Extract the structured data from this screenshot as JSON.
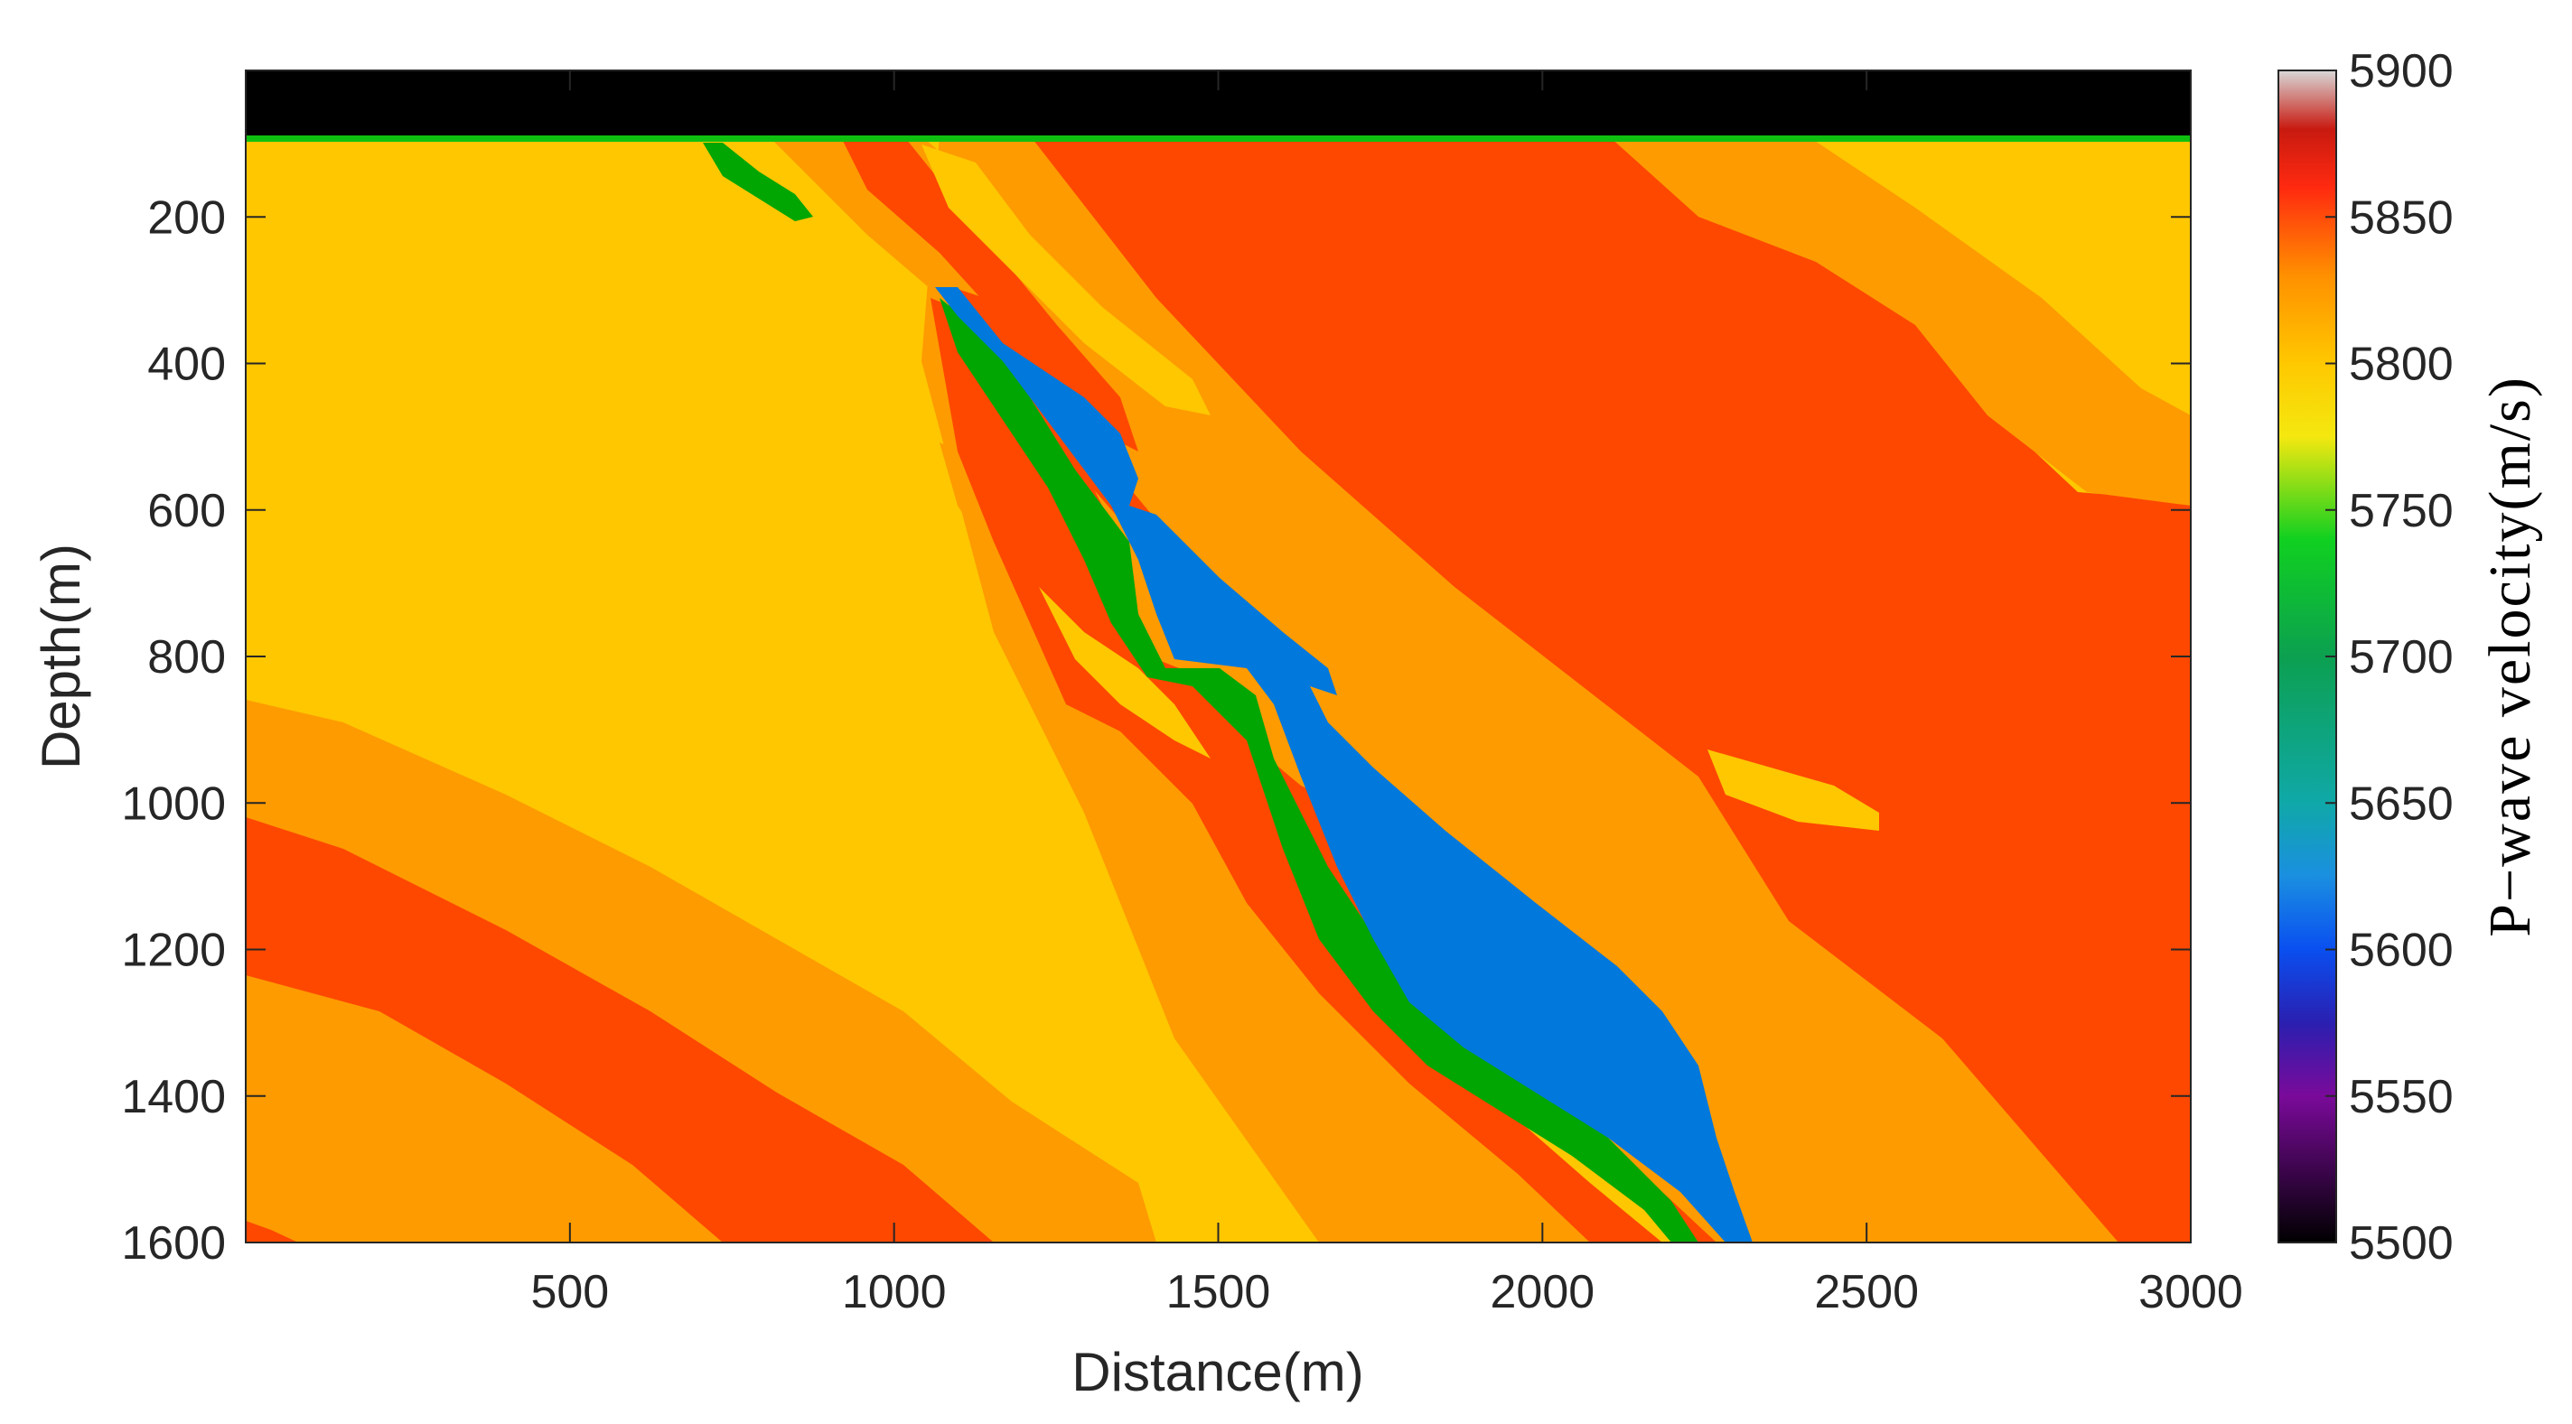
{
  "chart_data": {
    "type": "heatmap",
    "title": "",
    "xlabel": "Distance(m)",
    "ylabel": "Depth(m)",
    "colorbar_label": "P−wave velocity(m/s)",
    "xlim": [
      0,
      3000
    ],
    "ylim": [
      0,
      1600
    ],
    "y_reversed": true,
    "x_ticks": [
      500,
      1000,
      1500,
      2000,
      2500,
      3000
    ],
    "x_tick_labels": [
      "500",
      "1000",
      "1500",
      "2000",
      "2500",
      "3000"
    ],
    "y_ticks": [
      200,
      400,
      600,
      800,
      1000,
      1200,
      1400,
      1600
    ],
    "y_tick_labels": [
      "200",
      "400",
      "600",
      "800",
      "1000",
      "1200",
      "1400",
      "1600"
    ],
    "clim": [
      5500,
      5900
    ],
    "colorbar_ticks": [
      5500,
      5550,
      5600,
      5650,
      5700,
      5750,
      5800,
      5850,
      5900
    ],
    "colorbar_tick_labels": [
      "5500",
      "5550",
      "5600",
      "5650",
      "5700",
      "5750",
      "5800",
      "5850",
      "5900"
    ],
    "colormap_stops": [
      {
        "v": 5500,
        "color": "#000000"
      },
      {
        "v": 5550,
        "color": "#7a0a9a"
      },
      {
        "v": 5575,
        "color": "#2a1fb0"
      },
      {
        "v": 5600,
        "color": "#0a4ff0"
      },
      {
        "v": 5625,
        "color": "#1a8fe0"
      },
      {
        "v": 5650,
        "color": "#10a8a8"
      },
      {
        "v": 5700,
        "color": "#0ca050"
      },
      {
        "v": 5740,
        "color": "#10d020"
      },
      {
        "v": 5775,
        "color": "#f4e810"
      },
      {
        "v": 5800,
        "color": "#ffc800"
      },
      {
        "v": 5830,
        "color": "#ff9000"
      },
      {
        "v": 5860,
        "color": "#ff2a10"
      },
      {
        "v": 5880,
        "color": "#c81a10"
      },
      {
        "v": 5900,
        "color": "#d8d8d8"
      }
    ],
    "layers": [
      {
        "id": "base",
        "velocity": 5800,
        "color": "#fec700"
      },
      {
        "id": "orange",
        "velocity": 5820,
        "color": "#fe9b00"
      },
      {
        "id": "red",
        "velocity": 5840,
        "color": "#fe4800"
      },
      {
        "id": "green",
        "velocity": 5700,
        "color": "#02a602"
      },
      {
        "id": "blue",
        "velocity": 5610,
        "color": "#0078dc"
      },
      {
        "id": "water",
        "velocity": 5500,
        "color": "#000000",
        "depth_range": [
          0,
          95
        ]
      }
    ]
  }
}
